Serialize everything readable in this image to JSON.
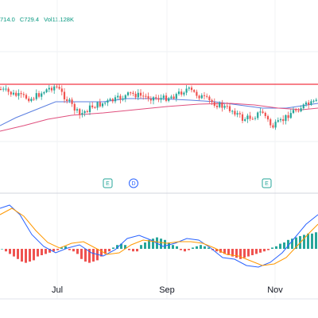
{
  "legend": {
    "low": "714.0",
    "close": "C729.4",
    "volume": "Vol11.128K"
  },
  "x_axis_labels": [
    "Jul",
    "Sep",
    "Nov"
  ],
  "event_badges": [
    {
      "label": "E",
      "x_label": "Jul"
    },
    {
      "label": "D",
      "x_label": "Jul"
    },
    {
      "label": "E",
      "x_label": "Nov"
    }
  ],
  "colors": {
    "up": "#26a69a",
    "down": "#ef5350",
    "resistance": "#f23645",
    "ma_fast": "#5b7fe0",
    "ma_slow": "#e0507e",
    "macd": "#2962ff",
    "signal": "#ff9800",
    "hist_up": "#26a69a",
    "hist_down": "#ef5350",
    "text": "#131722"
  },
  "panes": [
    "price",
    "macd"
  ],
  "chart_data": {
    "type": "candlestick",
    "x_labels": [
      "Jul",
      "Sep",
      "Nov"
    ],
    "series": [
      {
        "type": "candlestick",
        "trend": "sideways-range"
      },
      {
        "type": "line",
        "role": "moving-average-fast"
      },
      {
        "type": "line",
        "role": "moving-average-slow"
      },
      {
        "type": "horizontal-line",
        "role": "resistance"
      },
      {
        "type": "line",
        "pane": "macd",
        "role": "macd"
      },
      {
        "type": "line",
        "pane": "macd",
        "role": "signal"
      },
      {
        "type": "bar",
        "pane": "macd",
        "role": "histogram"
      }
    ]
  }
}
